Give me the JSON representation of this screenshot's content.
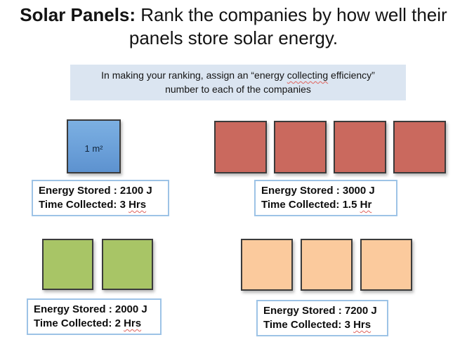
{
  "title": {
    "line1_bold": "Solar Panels:",
    "line1_rest": " Rank the companies by how well their",
    "line2": "panels store solar energy."
  },
  "instruction": {
    "line1_pre": "In making your ranking, assign an “energy ",
    "misspelled_word": "collecting",
    "line1_post": " efficiency”",
    "line2": "number to each of the companies"
  },
  "groups": [
    {
      "name": "blue-company",
      "panel_count": 1,
      "panel_color": "#6FA3DB",
      "panel_label": "1 m²",
      "energy_line": "Energy Stored : 2100 J",
      "time_line_pre": "Time Collected: 3 ",
      "time_unit": "Hrs"
    },
    {
      "name": "red-company",
      "panel_count": 4,
      "panel_color": "#CA695E",
      "energy_line": "Energy Stored : 3000 J",
      "time_line_pre": "Time Collected: 1.5 ",
      "time_unit": "Hr"
    },
    {
      "name": "green-company",
      "panel_count": 2,
      "panel_color": "#A8C566",
      "energy_line": "Energy Stored : 2000 J",
      "time_line_pre": "Time Collected: 2 ",
      "time_unit": "Hrs"
    },
    {
      "name": "orange-company",
      "panel_count": 3,
      "panel_color": "#FBCA9D",
      "energy_line": "Energy Stored : 7200 J",
      "time_line_pre": "Time Collected: 3 ",
      "time_unit": "Hrs"
    }
  ],
  "colors": {
    "instruction_bg": "#DBE5F1",
    "info_box_border": "#9DC3E6",
    "panel_border": "#3B3B3B",
    "spellcheck_squiggle": "#E0625C"
  }
}
